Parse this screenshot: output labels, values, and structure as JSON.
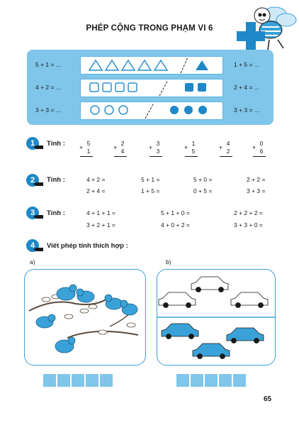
{
  "title": "PHÉP CỘNG TRONG PHẠM VI 6",
  "panel": {
    "rows": [
      {
        "left": "5 + 1 = ...",
        "right": "1 + 5 = ..."
      },
      {
        "left": "4 + 2 = ...",
        "right": "2 + 4 = ..."
      },
      {
        "left": "3 + 3 = ...",
        "right": "3 + 3 = ..."
      }
    ]
  },
  "exercises": {
    "ex1": {
      "number": "1",
      "label": "Tính :",
      "columns": [
        {
          "op": "+",
          "a": "5",
          "b": "1"
        },
        {
          "op": "+",
          "a": "2",
          "b": "4"
        },
        {
          "op": "+",
          "a": "3",
          "b": "3"
        },
        {
          "op": "+",
          "a": "1",
          "b": "5"
        },
        {
          "op": "+",
          "a": "4",
          "b": "2"
        },
        {
          "op": "+",
          "a": "0",
          "b": "6"
        }
      ]
    },
    "ex2": {
      "number": "2",
      "label": "Tính :",
      "items": [
        "4 + 2 =",
        "2 + 4 =",
        "5 + 1 =",
        "1 + 5 =",
        "5 + 0 =",
        "0 + 5 =",
        "2 + 2 =",
        "3 + 3 ="
      ]
    },
    "ex3": {
      "number": "3",
      "label": "Tính :",
      "items": [
        "4 + 1 + 1 =",
        "3 + 2 + 1 =",
        "5 + 1 + 0 =",
        "4 + 0 + 2 =",
        "2 + 2 + 2 =",
        "3 + 3 + 0 ="
      ]
    },
    "ex4": {
      "number": "4",
      "label": "Viết phép tính thích hợp :",
      "part_a": "a)",
      "part_b": "b)"
    }
  },
  "page_number": "65",
  "colors": {
    "accent": "#1e88c8",
    "light_blue": "#7fc6ea"
  }
}
